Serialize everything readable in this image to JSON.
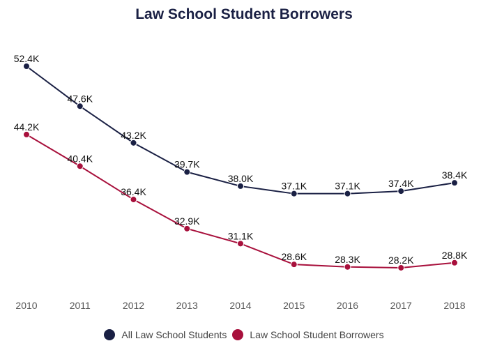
{
  "chart_data": {
    "type": "line",
    "title": "Law School Student Borrowers",
    "xlabel": "",
    "ylabel": "",
    "categories": [
      "2010",
      "2011",
      "2012",
      "2013",
      "2014",
      "2015",
      "2016",
      "2017",
      "2018"
    ],
    "series": [
      {
        "name": "All Law School Students",
        "color": "#1a2044",
        "values": [
          52.4,
          47.6,
          43.2,
          39.7,
          38.0,
          37.1,
          37.1,
          37.4,
          38.4
        ],
        "labels": [
          "52.4K",
          "47.6K",
          "43.2K",
          "39.7K",
          "38.0K",
          "37.1K",
          "37.1K",
          "37.4K",
          "38.4K"
        ]
      },
      {
        "name": "Law School Student Borrowers",
        "color": "#a8103c",
        "values": [
          44.2,
          40.4,
          36.4,
          32.9,
          31.1,
          28.6,
          28.3,
          28.2,
          28.8
        ],
        "labels": [
          "44.2K",
          "40.4K",
          "36.4K",
          "32.9K",
          "31.1K",
          "28.6K",
          "28.3K",
          "28.2K",
          "28.8K"
        ]
      }
    ],
    "grid": false,
    "legend_position": "bottom",
    "data_label_suffix": "K"
  },
  "legend": {
    "items": [
      {
        "label": "All Law School Students",
        "color": "#1a2044"
      },
      {
        "label": "Law School Student Borrowers",
        "color": "#a8103c"
      }
    ]
  }
}
